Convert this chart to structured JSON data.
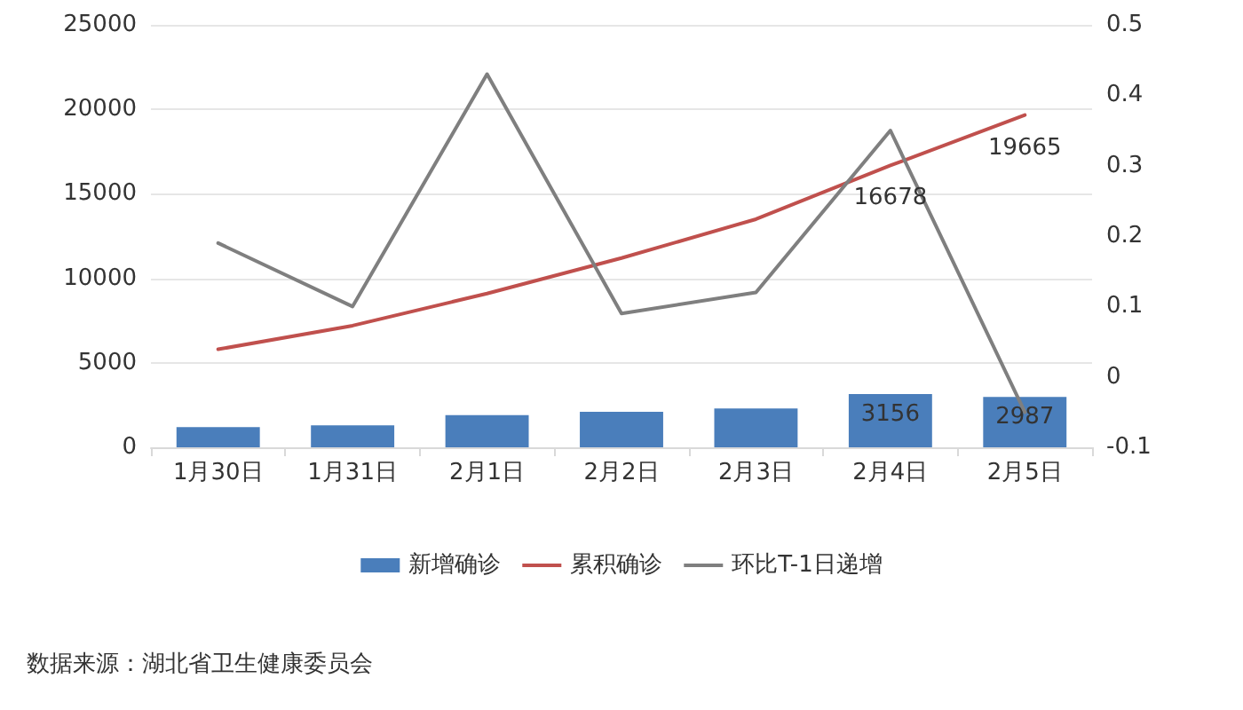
{
  "chart_data": {
    "type": "bar",
    "categories": [
      "1月30日",
      "1月31日",
      "2月1日",
      "2月2日",
      "2月3日",
      "2月4日",
      "2月5日"
    ],
    "series": [
      {
        "name": "新增确诊",
        "color": "#4a7ebb",
        "values": [
          1200,
          1300,
          1900,
          2100,
          2300,
          3156,
          2987
        ],
        "value_labels": [
          null,
          null,
          null,
          null,
          null,
          "3156",
          "2987"
        ]
      },
      {
        "name": "累积确诊",
        "type": "line",
        "color": "#c0504d",
        "values": [
          5800,
          7200,
          9100,
          11200,
          13500,
          16678,
          19665
        ],
        "value_labels": [
          null,
          null,
          null,
          null,
          null,
          "16678",
          "19665"
        ]
      },
      {
        "name": "环比T-1日递增",
        "type": "line",
        "axis": "y2",
        "color": "#7f7f7f",
        "values": [
          0.19,
          0.1,
          0.43,
          0.09,
          0.12,
          0.35,
          -0.05
        ]
      }
    ],
    "ylim": [
      0,
      25000
    ],
    "yticks": [
      0,
      5000,
      10000,
      15000,
      20000,
      25000
    ],
    "y2lim": [
      -0.1,
      0.5
    ],
    "y2ticks": [
      -0.1,
      0,
      0.1,
      0.2,
      0.3,
      0.4,
      0.5
    ],
    "grid": "y",
    "legend": "bottom",
    "marker": "none",
    "line_style": "solid",
    "annotations": [
      "数据来源：湖北省卫生健康委员会"
    ]
  }
}
